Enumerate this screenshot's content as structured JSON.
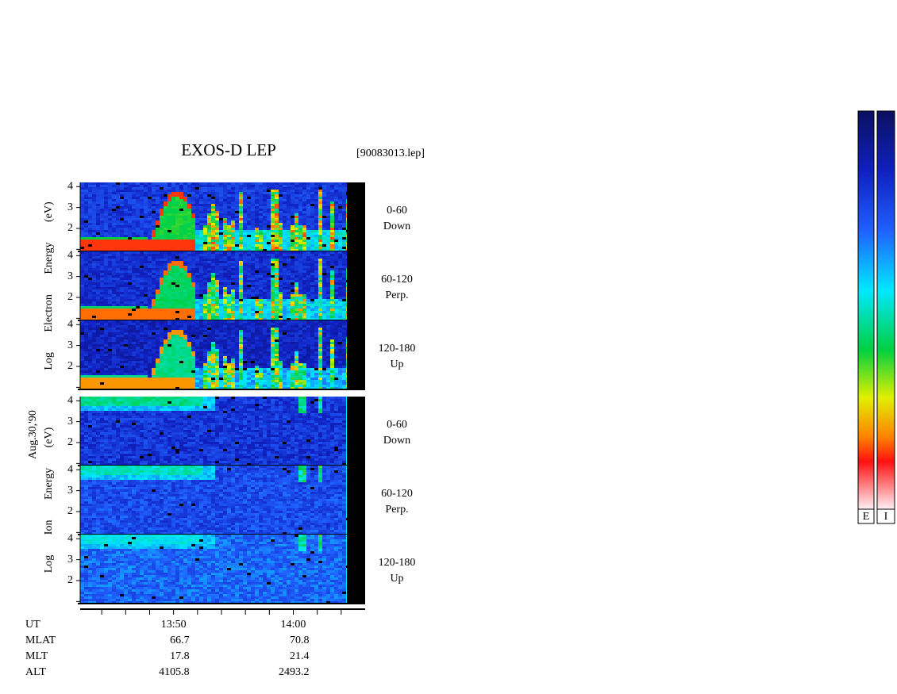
{
  "chart_data": {
    "type": "spectrogram",
    "title": "EXOS-D LEP",
    "file_label": "[90083013.lep]",
    "date_label": "Aug.30,'90",
    "ylim": [
      0.9,
      4.2
    ],
    "yticks": [
      2,
      3,
      4
    ],
    "minor_yticks": [
      1
    ],
    "xlim": [
      822.2,
      846
    ],
    "xticks": [
      {
        "value": 830,
        "label": "13:50"
      },
      {
        "value": 840,
        "label": "14:00"
      }
    ],
    "minor_xticks": [
      824,
      826,
      828,
      832,
      834,
      836,
      838,
      842,
      844
    ],
    "groups": [
      {
        "ylabel": "Log Electron Energy (eV)",
        "species": "electron",
        "panels": [
          {
            "range": "0-60",
            "direction": "Down"
          },
          {
            "range": "60-120",
            "direction": "Perp."
          },
          {
            "range": "120-180",
            "direction": "Up"
          }
        ]
      },
      {
        "ylabel": "Log Ion Energy (eV)",
        "species": "ion",
        "panels": [
          {
            "range": "0-60",
            "direction": "Down"
          },
          {
            "range": "60-120",
            "direction": "Perp."
          },
          {
            "range": "120-180",
            "direction": "Up"
          }
        ]
      }
    ],
    "ephemeris": {
      "labels": [
        "UT",
        "MLAT",
        "MLT",
        "ALT"
      ],
      "rows": [
        [
          66.7,
          70.8
        ],
        [
          17.8,
          21.4
        ],
        [
          4105.8,
          2493.2
        ]
      ]
    },
    "colorbars": [
      "E",
      "I"
    ]
  }
}
